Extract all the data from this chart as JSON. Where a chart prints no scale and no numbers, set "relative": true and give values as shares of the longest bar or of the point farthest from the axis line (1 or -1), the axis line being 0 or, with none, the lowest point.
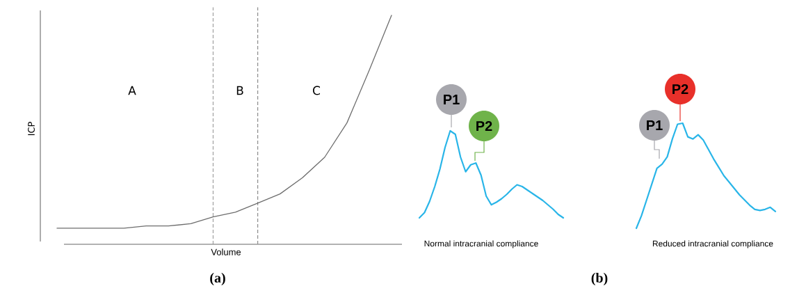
{
  "chart_data": [
    {
      "type": "line",
      "relative": true,
      "title": "(a)",
      "xlabel": "Volume",
      "ylabel": "ICP",
      "categories": [
        null,
        null,
        null,
        null,
        null,
        null,
        null,
        null,
        null,
        null,
        null,
        null,
        null,
        null,
        null,
        null
      ],
      "series": [
        {
          "color": "#6d6d6d",
          "values": [
            0.07,
            0.07,
            0.07,
            0.07,
            0.08,
            0.08,
            0.09,
            0.12,
            0.14,
            0.18,
            0.22,
            0.29,
            0.38,
            0.53,
            0.76,
            1.0
          ]
        }
      ],
      "annotations": [
        "A",
        "B",
        "C"
      ]
    },
    {
      "type": "line",
      "relative": true,
      "xlabel": "Normal intracranial compliance",
      "categories": [
        null,
        null,
        null,
        null,
        null,
        null,
        null,
        null,
        null,
        null,
        null,
        null,
        null,
        null,
        null,
        null,
        null,
        null,
        null,
        null,
        null,
        null,
        null,
        null,
        null,
        null,
        null,
        null,
        null
      ],
      "series": [
        {
          "color": "#29b5e8",
          "values": [
            0,
            0.06,
            0.19,
            0.36,
            0.56,
            0.81,
            1.0,
            0.96,
            0.7,
            0.53,
            0.61,
            0.63,
            0.49,
            0.25,
            0.15,
            0.18,
            0.22,
            0.27,
            0.33,
            0.38,
            0.36,
            0.32,
            0.28,
            0.24,
            0.2,
            0.15,
            0.1,
            0.04,
            0
          ]
        }
      ],
      "annotations": [
        "P1",
        "P2"
      ]
    },
    {
      "type": "line",
      "relative": true,
      "title": "(b)",
      "xlabel": "Reduced intracranial compliance",
      "categories": [
        null,
        null,
        null,
        null,
        null,
        null,
        null,
        null,
        null,
        null,
        null,
        null,
        null,
        null,
        null,
        null,
        null,
        null,
        null,
        null,
        null,
        null,
        null,
        null,
        null,
        null,
        null,
        null
      ],
      "series": [
        {
          "color": "#29b5e8",
          "values": [
            0,
            0.12,
            0.27,
            0.42,
            0.57,
            0.61,
            0.68,
            0.85,
            0.99,
            1.0,
            0.87,
            0.85,
            0.89,
            0.84,
            0.75,
            0.66,
            0.58,
            0.5,
            0.44,
            0.38,
            0.32,
            0.27,
            0.22,
            0.18,
            0.17,
            0.18,
            0.2,
            0.16
          ]
        }
      ],
      "annotations": [
        "P1",
        "P2"
      ]
    }
  ]
}
